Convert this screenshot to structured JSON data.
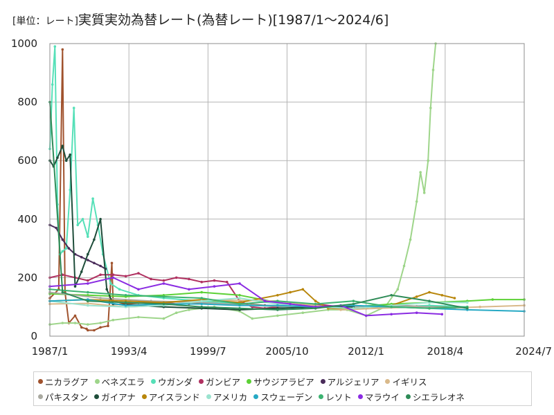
{
  "title": {
    "unit": "[単位：レート]",
    "main": "実質実効為替レート(為替レート)[1987/1〜2024/6]"
  },
  "chart_data": {
    "type": "line",
    "xlabel": "",
    "ylabel": "",
    "ylim": [
      0,
      1000
    ],
    "xlim": [
      1987.0,
      2024.5
    ],
    "grid": true,
    "legend_position": "bottom",
    "x_ticks": [
      {
        "value": 1987.0,
        "label": "1987/1"
      },
      {
        "value": 1993.25,
        "label": "1993/4"
      },
      {
        "value": 1999.5,
        "label": "1999/7"
      },
      {
        "value": 2005.75,
        "label": "2005/10"
      },
      {
        "value": 2012.0,
        "label": "2012/1"
      },
      {
        "value": 2018.25,
        "label": "2018/4"
      },
      {
        "value": 2024.5,
        "label": "2024/7"
      }
    ],
    "y_ticks": [
      {
        "value": 0,
        "label": "0"
      },
      {
        "value": 200,
        "label": "200"
      },
      {
        "value": 400,
        "label": "400"
      },
      {
        "value": 600,
        "label": "600"
      },
      {
        "value": 800,
        "label": "800"
      },
      {
        "value": 1000,
        "label": "1000"
      }
    ],
    "series": [
      {
        "name": "ニカラグア",
        "color": "#a0522d",
        "x": [
          1987.0,
          1987.7,
          1988.0,
          1988.2,
          1988.5,
          1989.0,
          1989.5,
          1989.9,
          1990.0,
          1990.5,
          1991.0,
          1991.6,
          1991.9,
          1992.0,
          1993.0,
          1995.0,
          1998.0,
          2001.0,
          2004.0,
          2007.0,
          2010.0,
          2013.0,
          2016.0,
          2019.0
        ],
        "y": [
          130,
          160,
          980,
          150,
          45,
          70,
          30,
          25,
          20,
          20,
          30,
          35,
          250,
          120,
          110,
          115,
          110,
          115,
          105,
          100,
          98,
          100,
          102,
          100
        ]
      },
      {
        "name": "ベネズエラ",
        "color": "#9ed58a",
        "x": [
          1987.0,
          1988.0,
          1989.0,
          1990.0,
          1991.0,
          1992.0,
          1994.0,
          1996.0,
          1997.0,
          1998.0,
          2000.0,
          2002.0,
          2003.0,
          2005.0,
          2007.0,
          2009.0,
          2010.5,
          2012.0,
          2013.5,
          2014.5,
          2015.0,
          2015.5,
          2016.0,
          2016.3,
          2016.6,
          2016.9,
          2017.1,
          2017.3,
          2017.5
        ],
        "y": [
          40,
          45,
          45,
          40,
          45,
          55,
          65,
          60,
          80,
          90,
          100,
          85,
          60,
          70,
          80,
          90,
          90,
          70,
          100,
          160,
          240,
          330,
          460,
          560,
          490,
          600,
          780,
          910,
          1000
        ]
      },
      {
        "name": "ウガンダ",
        "color": "#56e0b8",
        "x": [
          1987.0,
          1987.2,
          1987.4,
          1987.6,
          1987.8,
          1988.0,
          1988.3,
          1988.6,
          1988.9,
          1989.2,
          1989.6,
          1990.0,
          1990.4,
          1990.8,
          1991.2,
          1991.8,
          1992.5,
          1994.0,
          1996.0,
          1999.0,
          2002.0,
          2005.0,
          2008.0,
          2011.0,
          2014.0,
          2017.0,
          2020.0
        ],
        "y": [
          640,
          860,
          990,
          450,
          280,
          290,
          300,
          500,
          780,
          380,
          400,
          340,
          470,
          380,
          280,
          180,
          160,
          140,
          130,
          120,
          110,
          100,
          105,
          100,
          100,
          105,
          100
        ]
      },
      {
        "name": "ガンビア",
        "color": "#b03060",
        "x": [
          1987.0,
          1988.0,
          1989.0,
          1990.0,
          1991.0,
          1992.0,
          1993.0,
          1994.0,
          1995.0,
          1996.0,
          1997.0,
          1998.0,
          1999.0,
          2000.0,
          2001.0,
          2002.0,
          2003.0,
          2004.0,
          2006.0,
          2008.0,
          2010.0,
          2012.0
        ],
        "y": [
          200,
          210,
          200,
          190,
          210,
          210,
          205,
          215,
          195,
          190,
          200,
          195,
          185,
          190,
          185,
          120,
          100,
          95,
          105,
          110,
          100,
          95
        ]
      },
      {
        "name": "サウジアラビア",
        "color": "#5cd135",
        "x": [
          1987.0,
          1990.0,
          1993.0,
          1996.0,
          1999.0,
          2002.0,
          2005.0,
          2008.0,
          2011.0,
          2014.0,
          2017.0,
          2020.0,
          2022.0,
          2024.5
        ],
        "y": [
          145,
          140,
          135,
          140,
          150,
          140,
          115,
          100,
          100,
          110,
          115,
          120,
          125,
          125
        ]
      },
      {
        "name": "アルジェリア",
        "color": "#4a2c5a",
        "x": [
          1987.0,
          1987.5,
          1988.0,
          1988.5,
          1989.0,
          1989.5,
          1990.0,
          1990.5,
          1991.0,
          1991.4
        ],
        "y": [
          380,
          370,
          330,
          300,
          280,
          270,
          260,
          250,
          240,
          230
        ]
      },
      {
        "name": "イギリス",
        "color": "#d9b98a",
        "x": [
          1987.0,
          1990.0,
          1993.0,
          1996.0,
          1999.0,
          2002.0,
          2005.0,
          2008.0,
          2010.0,
          2013.0,
          2016.0,
          2018.0,
          2021.0,
          2024.5
        ],
        "y": [
          110,
          112,
          100,
          105,
          125,
          122,
          120,
          105,
          90,
          95,
          100,
          95,
          100,
          105
        ]
      },
      {
        "name": "パキスタン",
        "color": "#a9a9a0",
        "x": [
          1987.0,
          1991.0,
          1995.0,
          1999.0,
          2003.0,
          2007.0,
          2011.0,
          2015.0,
          2019.0
        ],
        "y": [
          150,
          130,
          120,
          115,
          105,
          100,
          100,
          105,
          95
        ]
      },
      {
        "name": "ガイアナ",
        "color": "#1e4d3a",
        "x": [
          1987.0,
          1987.3,
          1987.6,
          1988.0,
          1988.3,
          1988.6,
          1989.0,
          1989.5,
          1990.0,
          1990.5,
          1991.0,
          1991.5,
          1992.0,
          1994.0,
          1996.0,
          1999.0,
          2002.0,
          2005.0,
          2008.0,
          2011.0
        ],
        "y": [
          600,
          580,
          610,
          650,
          600,
          620,
          170,
          220,
          280,
          330,
          400,
          160,
          110,
          105,
          100,
          95,
          90,
          95,
          100,
          100
        ]
      },
      {
        "name": "アイスランド",
        "color": "#b8860b",
        "x": [
          1987.0,
          1990.0,
          1993.0,
          1996.0,
          1999.0,
          2002.0,
          2005.0,
          2006.0,
          2007.0,
          2008.0,
          2009.0,
          2011.0,
          2014.0,
          2016.0,
          2017.0,
          2018.0,
          2019.0
        ],
        "y": [
          120,
          125,
          120,
          115,
          125,
          115,
          140,
          150,
          160,
          120,
          95,
          95,
          105,
          135,
          150,
          140,
          130
        ]
      },
      {
        "name": "アメリカ",
        "color": "#9be3cf",
        "x": [
          1987.0,
          1990.0,
          1993.0,
          1996.0,
          1999.0,
          2002.0,
          2005.0,
          2008.0,
          2011.0,
          2014.0,
          2017.0,
          2020.0
        ],
        "y": [
          120,
          105,
          100,
          105,
          120,
          130,
          110,
          100,
          95,
          105,
          115,
          115
        ]
      },
      {
        "name": "スウェーデン",
        "color": "#26a9c4",
        "x": [
          1987.0,
          1990.0,
          1993.0,
          1996.0,
          1999.0,
          2002.0,
          2005.0,
          2008.0,
          2011.0,
          2014.0,
          2017.0,
          2020.0,
          2024.5
        ],
        "y": [
          120,
          125,
          105,
          110,
          110,
          105,
          105,
          100,
          105,
          100,
          95,
          90,
          85
        ]
      },
      {
        "name": "レソト",
        "color": "#3cb371",
        "x": [
          1987.0,
          1990.0,
          1993.0,
          1996.0,
          1999.0,
          2002.0,
          2005.0,
          2008.0,
          2011.0,
          2014.0,
          2017.0,
          2020.0
        ],
        "y": [
          160,
          150,
          140,
          135,
          130,
          110,
          120,
          110,
          120,
          100,
          95,
          100
        ]
      },
      {
        "name": "マラウイ",
        "color": "#8a2be2",
        "x": [
          1987.0,
          1990.0,
          1992.0,
          1994.0,
          1996.0,
          1998.0,
          2000.0,
          2002.0,
          2004.0,
          2006.0,
          2008.0,
          2010.0,
          2012.0,
          2014.0,
          2016.0,
          2018.0
        ],
        "y": [
          170,
          180,
          200,
          160,
          180,
          160,
          170,
          180,
          120,
          110,
          100,
          105,
          70,
          75,
          80,
          75
        ]
      },
      {
        "name": "シエラレオネ",
        "color": "#2e8b57",
        "x": [
          1987.0,
          1988.0,
          1990.0,
          1993.0,
          1996.0,
          1999.0,
          2002.0,
          2005.0,
          2008.0,
          2011.0,
          2014.0,
          2017.0,
          2020.0
        ],
        "y": [
          800,
          150,
          120,
          115,
          110,
          100,
          95,
          90,
          95,
          110,
          140,
          120,
          95
        ]
      }
    ]
  }
}
